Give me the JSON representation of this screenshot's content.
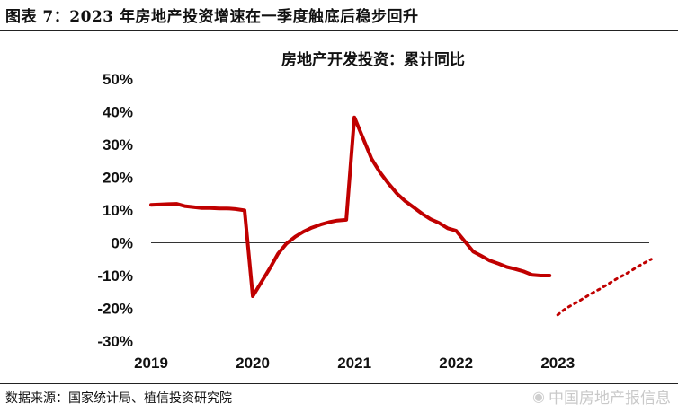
{
  "figure": {
    "title": "图表 7：2023 年房地产投资增速在一季度触底后稳步回升",
    "source": "数据来源：国家统计局、植信投资研究院",
    "watermark": "中国房地产报信息",
    "watermark_icon": "weibo-icon"
  },
  "chart_data": {
    "type": "line",
    "title": "房地产开发投资：累计同比",
    "xlabel": "",
    "ylabel": "",
    "ylim": [
      -30,
      50
    ],
    "xlim": [
      2019,
      2023.9
    ],
    "yticks": [
      50,
      40,
      30,
      20,
      10,
      0,
      -10,
      -20,
      -30
    ],
    "ytick_labels": [
      "50%",
      "40%",
      "30%",
      "20%",
      "10%",
      "0%",
      "-10%",
      "-20%",
      "-30%"
    ],
    "xticks": [
      2019,
      2020,
      2021,
      2022,
      2023
    ],
    "xtick_labels": [
      "2019",
      "2020",
      "2021",
      "2022",
      "2023"
    ],
    "grid": false,
    "line_color": "#c00000",
    "series": [
      {
        "style": "solid",
        "x": [
          2019.0,
          2019.17,
          2019.25,
          2019.33,
          2019.42,
          2019.5,
          2019.58,
          2019.67,
          2019.75,
          2019.83,
          2019.92,
          2020.0,
          2020.17,
          2020.25,
          2020.33,
          2020.42,
          2020.5,
          2020.58,
          2020.67,
          2020.75,
          2020.83,
          2020.92,
          2021.0,
          2021.17,
          2021.25,
          2021.33,
          2021.42,
          2021.5,
          2021.58,
          2021.67,
          2021.75,
          2021.83,
          2021.92,
          2022.0,
          2022.17,
          2022.25,
          2022.33,
          2022.42,
          2022.5,
          2022.58,
          2022.67,
          2022.75,
          2022.83,
          2022.92
        ],
        "y": [
          11.6,
          11.8,
          11.9,
          11.2,
          10.9,
          10.6,
          10.6,
          10.5,
          10.5,
          10.3,
          9.9,
          -16.3,
          -7.7,
          -3.3,
          -0.3,
          1.9,
          3.4,
          4.6,
          5.6,
          6.3,
          6.8,
          7.0,
          38.3,
          25.6,
          21.6,
          18.3,
          15.0,
          12.7,
          10.9,
          8.8,
          7.2,
          6.1,
          4.4,
          3.7,
          -2.7,
          -4.0,
          -5.4,
          -6.4,
          -7.4,
          -8.0,
          -8.8,
          -9.8,
          -10.0,
          -10.0
        ],
        "note": ""
      },
      {
        "style": "dotted",
        "x": [
          2023.0,
          2023.08,
          2023.17,
          2023.25,
          2023.33,
          2023.42,
          2023.5,
          2023.58,
          2023.67,
          2023.75,
          2023.83,
          2023.92
        ],
        "y": [
          -22.0,
          -20.0,
          -18.5,
          -17.0,
          -15.5,
          -14.0,
          -12.5,
          -11.0,
          -9.5,
          -8.0,
          -6.5,
          -5.0
        ],
        "note": ""
      }
    ]
  }
}
